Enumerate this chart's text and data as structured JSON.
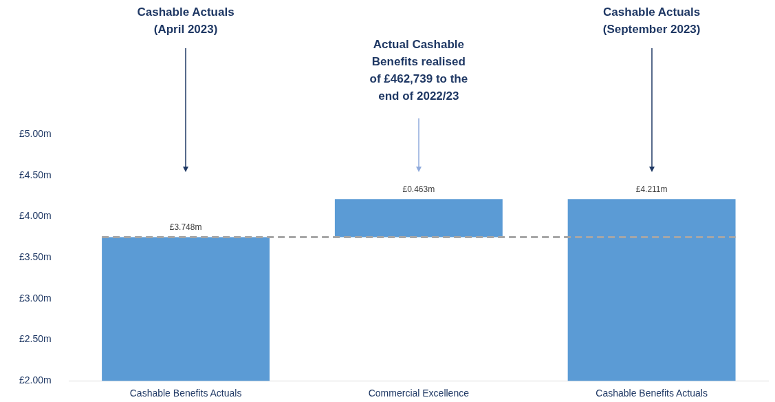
{
  "chart_data": {
    "type": "bar",
    "categories": [
      "Cashable Benefits Actuals",
      "Commercial Excellence",
      "Cashable Benefits Actuals"
    ],
    "values": [
      3.748,
      0.463,
      4.211
    ],
    "base": [
      null,
      3.748,
      null
    ],
    "color": "#5b9bd5",
    "value_labels": [
      "£3.748m",
      "£0.463m",
      "£4.211m"
    ],
    "ylim": [
      2,
      5
    ],
    "yticks": [
      {
        "value": 2,
        "label": "£2.00m"
      },
      {
        "value": 2.5,
        "label": "£2.50m"
      },
      {
        "value": 3,
        "label": "£3.00m"
      },
      {
        "value": 3.5,
        "label": "£3.50m"
      },
      {
        "value": 4,
        "label": "£4.00m"
      },
      {
        "value": 4.5,
        "label": "£4.50m"
      },
      {
        "value": 5,
        "label": "£5.00m"
      }
    ],
    "ref_lines": [
      {
        "axis": "y",
        "value": 3.748,
        "color": "#a6a6a6",
        "line_style": "dashed"
      }
    ],
    "annotations": [
      "Cashable Actuals\n(April 2023)",
      "Actual Cashable\nBenefits realised\nof £462,739 to the\nend of 2022/23",
      "Cashable Actuals\n(September 2023)"
    ]
  }
}
